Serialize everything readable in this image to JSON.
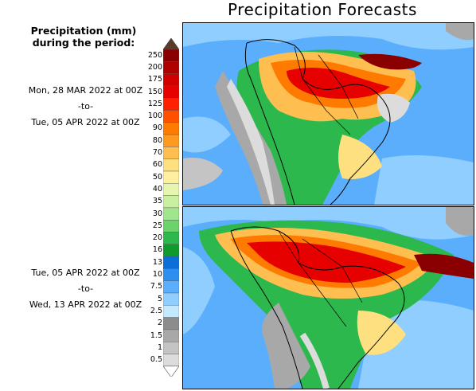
{
  "title": "Precipitation Forecasts",
  "legend": {
    "heading_line1": "Precipitation (mm)",
    "heading_line2": "during the period:",
    "levels": [
      "250",
      "200",
      "175",
      "150",
      "125",
      "100",
      "90",
      "80",
      "70",
      "60",
      "50",
      "40",
      "35",
      "30",
      "25",
      "20",
      "16",
      "13",
      "10",
      "7.5",
      "5",
      "2.5",
      "2",
      "1.5",
      "1",
      "0.5"
    ],
    "colors": [
      "#8a0000",
      "#b00000",
      "#d00000",
      "#e60000",
      "#ff2000",
      "#ff5000",
      "#ff7a00",
      "#ff9a20",
      "#ffbf50",
      "#ffe080",
      "#fff0a0",
      "#e6f5b0",
      "#c8f0a0",
      "#a0e68c",
      "#6cd36c",
      "#2db84d",
      "#0f9a2d",
      "#0a6fd6",
      "#2f8ff0",
      "#5aaefc",
      "#8fcefe",
      "#c3e9ff",
      "#8c8c8c",
      "#a8a8a8",
      "#c4c4c4",
      "#dcdcdc"
    ],
    "top_cap_color": "#5a3a2a"
  },
  "periods": [
    {
      "start": "Mon, 28 MAR 2022 at 00Z",
      "sep": "-to-",
      "end": "Tue, 05 APR 2022 at 00Z"
    },
    {
      "start": "Tue, 05 APR 2022 at 00Z",
      "sep": "-to-",
      "end": "Wed, 13 APR 2022 at 00Z"
    }
  ]
}
